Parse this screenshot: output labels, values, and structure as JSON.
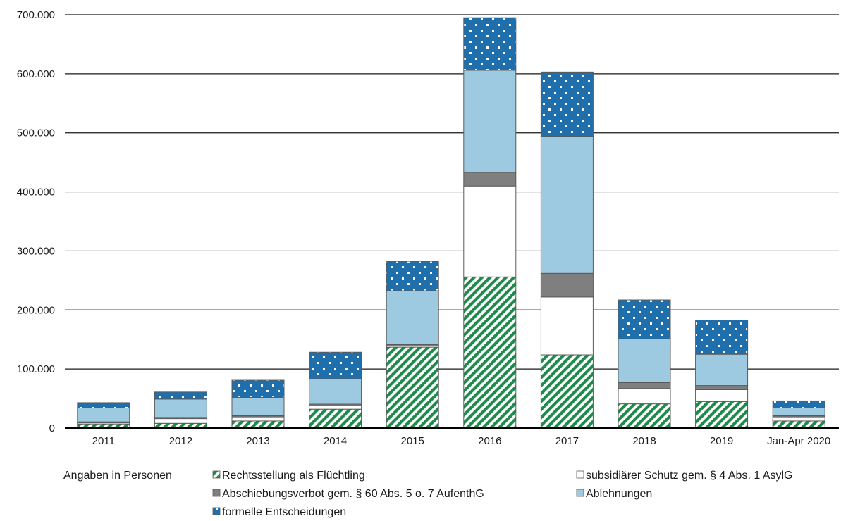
{
  "chart_data": {
    "type": "bar",
    "stacked": true,
    "categories": [
      "2011",
      "2012",
      "2013",
      "2014",
      "2015",
      "2016",
      "2017",
      "2018",
      "2019",
      "Jan-Apr 2020"
    ],
    "ylim": [
      0,
      700000
    ],
    "yticks": [
      "0",
      "100.000",
      "200.000",
      "300.000",
      "400.000",
      "500.000",
      "600.000",
      "700.000"
    ],
    "grid": true,
    "legend_position": "bottom",
    "legend_note": "Angaben in Personen",
    "series": [
      {
        "name": "Rechtsstellung als Flüchtling",
        "color": "#1f8a4c",
        "pattern": "diagonal-stripes",
        "values": [
          7000,
          8000,
          12000,
          32000,
          137000,
          256000,
          124000,
          41000,
          45000,
          12000
        ]
      },
      {
        "name": "subsidiärer Schutz gem. § 4 Abs. 1 AsylG",
        "color": "#ffffff",
        "pattern": "solid",
        "values": [
          2000,
          8000,
          7000,
          6000,
          2000,
          154000,
          98000,
          26000,
          20000,
          7000
        ]
      },
      {
        "name": "Abschiebungsverbot gem. § 60 Abs. 5 o. 7 AufenthG",
        "color": "#7f7f7f",
        "pattern": "solid",
        "values": [
          1500,
          2000,
          2000,
          2500,
          2500,
          23000,
          40000,
          10000,
          7000,
          2000
        ]
      },
      {
        "name": "Ablehnungen",
        "color": "#9ecae1",
        "pattern": "solid",
        "values": [
          23500,
          31000,
          31000,
          43000,
          91000,
          173000,
          232000,
          74000,
          53000,
          13000
        ]
      },
      {
        "name": "formelle Entscheidungen",
        "color": "#1f6fad",
        "pattern": "dots",
        "values": [
          9000,
          12000,
          29000,
          45000,
          50000,
          89000,
          109000,
          66000,
          58000,
          12000
        ]
      }
    ]
  }
}
